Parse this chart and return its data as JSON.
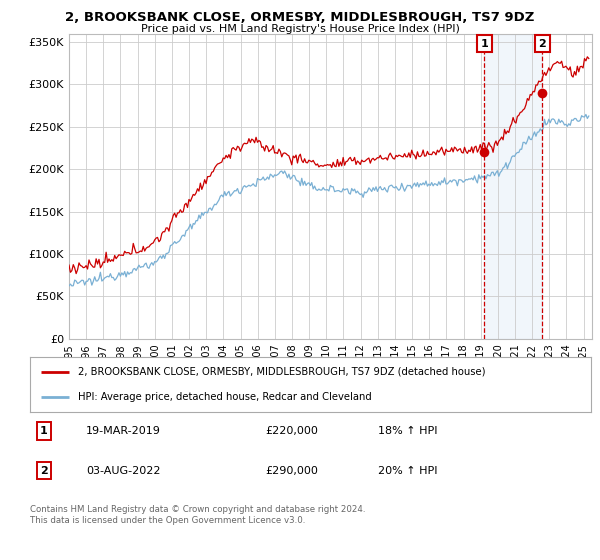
{
  "title": "2, BROOKSBANK CLOSE, ORMESBY, MIDDLESBROUGH, TS7 9DZ",
  "subtitle": "Price paid vs. HM Land Registry's House Price Index (HPI)",
  "ylabel_ticks": [
    "£0",
    "£50K",
    "£100K",
    "£150K",
    "£200K",
    "£250K",
    "£300K",
    "£350K"
  ],
  "ylim": [
    0,
    360000
  ],
  "xlim_start": 1995.0,
  "xlim_end": 2025.5,
  "sale1_x": 2019.21,
  "sale1_y": 220000,
  "sale1_label": "1",
  "sale1_date": "19-MAR-2019",
  "sale1_price": "£220,000",
  "sale1_hpi": "18% ↑ HPI",
  "sale2_x": 2022.58,
  "sale2_y": 290000,
  "sale2_label": "2",
  "sale2_date": "03-AUG-2022",
  "sale2_price": "£290,000",
  "sale2_hpi": "20% ↑ HPI",
  "legend_line1": "2, BROOKSBANK CLOSE, ORMESBY, MIDDLESBROUGH, TS7 9DZ (detached house)",
  "legend_line2": "HPI: Average price, detached house, Redcar and Cleveland",
  "footer": "Contains HM Land Registry data © Crown copyright and database right 2024.\nThis data is licensed under the Open Government Licence v3.0.",
  "red_color": "#cc0000",
  "blue_color": "#7ab0d4",
  "background_color": "#ffffff",
  "plot_bg": "#ffffff",
  "grid_color": "#cccccc",
  "sale_box_color": "#cc0000",
  "shade_color": "#ddeeff"
}
